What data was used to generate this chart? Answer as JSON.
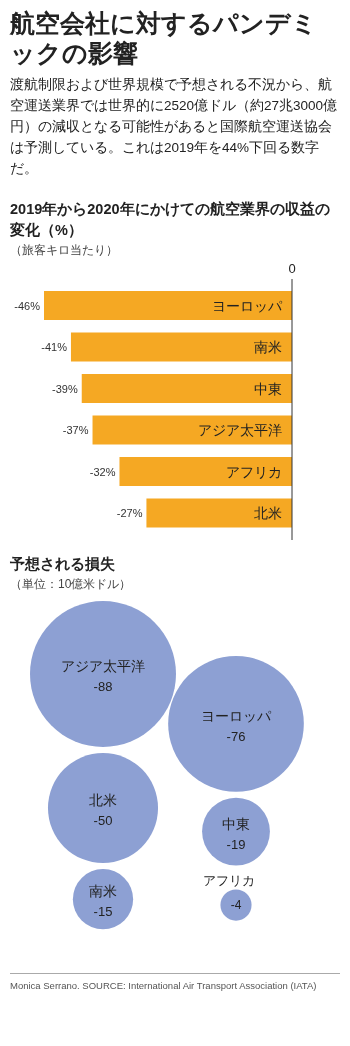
{
  "chart_data": [
    {
      "type": "bar",
      "orientation": "horizontal",
      "title": "航空会社に対するパンデミックの影響",
      "subtitle": "渡航制限および世界規模で予想される不況から、航空運送業界では世界的に2520億ドル（約27兆3000億円）の減収となる可能性があると国際航空運送協会は予測している。これは2019年を44%下回る数字だ。",
      "annotations": [
        "2019年から2020年にかけての航空業界の収益の変化（%）",
        "（旅客キロ当たり）",
        "0"
      ],
      "categories": [
        "ヨーロッパ",
        "南米",
        "中東",
        "アジア太平洋",
        "アフリカ",
        "北米"
      ],
      "values": [
        -46,
        -41,
        -39,
        -37,
        -32,
        -27
      ],
      "value_labels": [
        "-46%",
        "-41%",
        "-39%",
        "-37%",
        "-32%",
        "-27%"
      ],
      "color": "#f5a823"
    },
    {
      "type": "other",
      "title": "予想される損失",
      "subtitle": "（単位：10億米ドル）",
      "categories": [
        "アジア太平洋",
        "ヨーロッパ",
        "北米",
        "中東",
        "南米",
        "アフリカ"
      ],
      "values": [
        -88,
        -76,
        -50,
        -19,
        -15,
        -4
      ],
      "value_labels": [
        "-88",
        "-76",
        "-50",
        "-19",
        "-15",
        "-4"
      ],
      "color": "#8da0d3",
      "annotations": [
        "Monica Serrano. SOURCE: International Air Transport Association (IATA)"
      ]
    }
  ]
}
